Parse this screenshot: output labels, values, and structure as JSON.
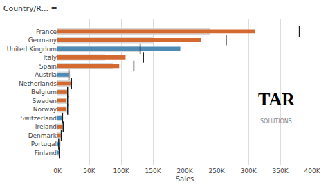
{
  "chart_data": {
    "type": "bar",
    "orientation": "horizontal",
    "title": "Country/R... ≡",
    "xlabel": "Sales",
    "categories": [
      "France",
      "Germany",
      "United Kingdom",
      "Italy",
      "Spain",
      "Austria",
      "Netherlands",
      "Belgium",
      "Sweden",
      "Norway",
      "Switzerland",
      "Ireland",
      "Denmark",
      "Portugal",
      "Finland"
    ],
    "series": [
      {
        "type": "bar",
        "color": "#d3d3d3",
        "values": [
          240000,
          150000,
          130000,
          75000,
          88000,
          20000,
          22000,
          16000,
          16000,
          16000,
          8000,
          10000,
          5000,
          5000,
          2000
        ]
      },
      {
        "type": "bar",
        "colors": [
          "#d46a30",
          "#d46a30",
          "#4e8bb5",
          "#d46a30",
          "#d46a30",
          "#4e8bb5",
          "#d46a30",
          "#d46a30",
          "#d46a30",
          "#d46a30",
          "#4e8bb5",
          "#d46a30",
          "#d46a30",
          "#4e8bb5",
          "#4e8bb5"
        ],
        "values": [
          310000,
          225000,
          193000,
          107000,
          97000,
          17000,
          21000,
          15000,
          14000,
          13000,
          7000,
          8000,
          5000,
          3000,
          2000
        ]
      },
      {
        "type": "scatter",
        "marker": "line-ns",
        "color": "#1a1a1a",
        "values": [
          380000,
          265000,
          130000,
          135000,
          120000,
          18000,
          22000,
          16000,
          16000,
          16000,
          8000,
          9000,
          6000,
          2000,
          3000
        ]
      }
    ],
    "xlim": [
      0,
      400000
    ],
    "xticks": [
      {
        "value": 0,
        "label": "0K"
      },
      {
        "value": 50000,
        "label": "50K"
      },
      {
        "value": 100000,
        "label": "100K"
      },
      {
        "value": 150000,
        "label": "150K"
      },
      {
        "value": 200000,
        "label": "200K"
      },
      {
        "value": 250000,
        "label": "250K"
      },
      {
        "value": 300000,
        "label": "300K"
      },
      {
        "value": 350000,
        "label": "350K"
      },
      {
        "value": 400000,
        "label": "400K"
      }
    ],
    "grid": true,
    "annotations": [
      "TAR",
      "SOLUTIONS"
    ]
  }
}
